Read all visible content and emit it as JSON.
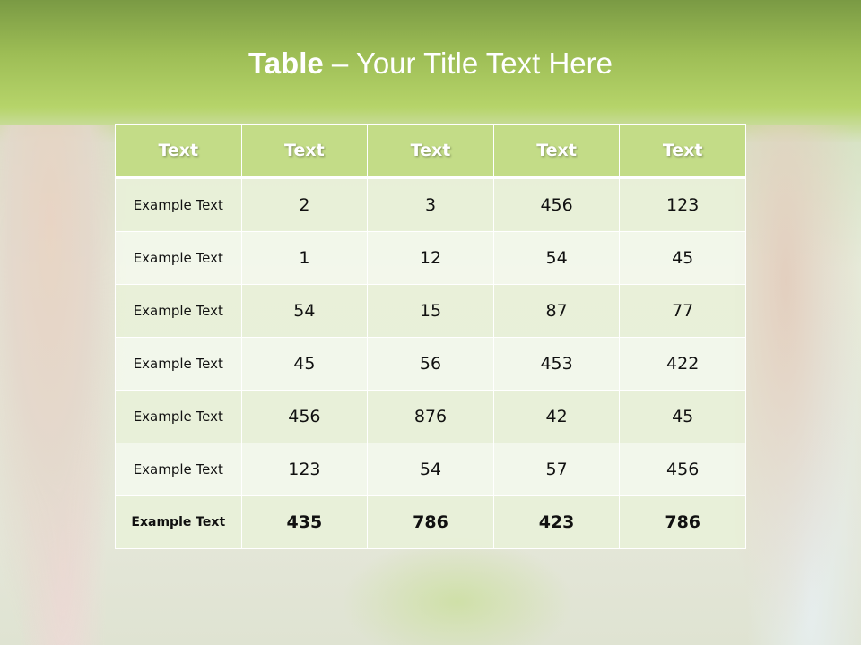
{
  "title": {
    "bold": "Table",
    "rest": " – Your Title Text Here"
  },
  "table": {
    "headers": [
      "Text",
      "Text",
      "Text",
      "Text",
      "Text"
    ],
    "rows": [
      [
        "Example Text",
        "2",
        "3",
        "456",
        "123"
      ],
      [
        "Example Text",
        "1",
        "12",
        "54",
        "45"
      ],
      [
        "Example Text",
        "54",
        "15",
        "87",
        "77"
      ],
      [
        "Example Text",
        "45",
        "56",
        "453",
        "422"
      ],
      [
        "Example Text",
        "456",
        "876",
        "42",
        "45"
      ],
      [
        "Example Text",
        "123",
        "54",
        "57",
        "456"
      ],
      [
        "Example Text",
        "435",
        "786",
        "423",
        "786"
      ]
    ]
  },
  "colors": {
    "header": "#c3dc87",
    "row_odd": "#e8f0d8",
    "row_even": "#f3f7ec",
    "title_band": "#9dbd55"
  }
}
